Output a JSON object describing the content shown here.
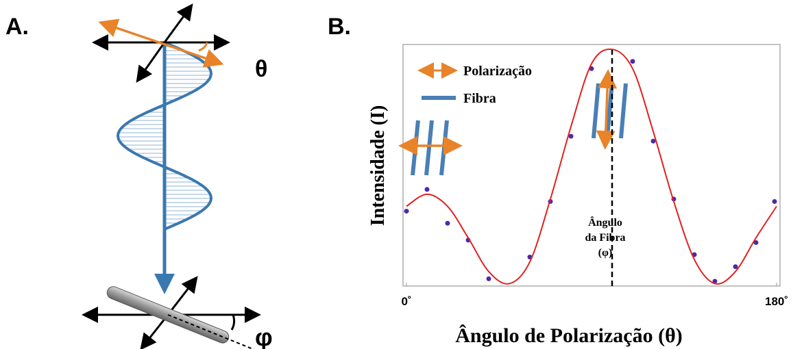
{
  "panel_a": {
    "label": "A.",
    "theta": "θ",
    "phi": "φ"
  },
  "chart_data": {
    "type": "scatter",
    "panel_label": "B.",
    "x_label": "Ângulo de Polarização (θ)",
    "y_label": "Intensidade (I)",
    "xlim": [
      0,
      180
    ],
    "ylim": [
      0,
      1
    ],
    "xticks": [
      {
        "value": 0,
        "label": "0˚"
      },
      {
        "value": 180,
        "label": "180˚"
      }
    ],
    "legend": [
      "Polarização",
      "Fibra"
    ],
    "annotation": {
      "text": [
        "Ângulo",
        "da Fibra",
        "(φ)"
      ],
      "x": 100
    },
    "series": [
      {
        "type": "scatter",
        "color": "#4b2aa8",
        "x": [
          0,
          10,
          20,
          30,
          40,
          60,
          70,
          80,
          90,
          110,
          120,
          130,
          140,
          150,
          160,
          170,
          179
        ],
        "values": [
          0.31,
          0.4,
          0.26,
          0.19,
          0.03,
          0.12,
          0.35,
          0.62,
          0.9,
          0.93,
          0.6,
          0.36,
          0.13,
          0.02,
          0.08,
          0.18,
          0.35
        ]
      },
      {
        "type": "line",
        "color": "#e02020",
        "x": [
          0,
          10,
          20,
          30,
          40,
          50,
          60,
          70,
          80,
          90,
          100,
          110,
          120,
          130,
          140,
          150,
          160,
          170,
          180
        ],
        "values": [
          0.33,
          0.38,
          0.33,
          0.2,
          0.06,
          0.01,
          0.1,
          0.36,
          0.66,
          0.92,
          0.98,
          0.9,
          0.64,
          0.35,
          0.11,
          0.01,
          0.06,
          0.2,
          0.33
        ]
      }
    ]
  }
}
